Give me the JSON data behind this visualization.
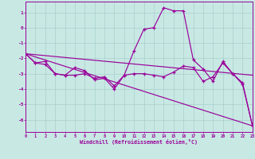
{
  "xlabel": "Windchill (Refroidissement éolien,°C)",
  "bg_color": "#c8e8e4",
  "grid_color": "#a8d0cc",
  "line_color": "#990099",
  "x_values": [
    0,
    1,
    2,
    3,
    4,
    5,
    6,
    7,
    8,
    9,
    10,
    11,
    12,
    13,
    14,
    15,
    16,
    17,
    18,
    19,
    20,
    21,
    22,
    23
  ],
  "line_zigzag": [
    -1.7,
    -2.3,
    -2.2,
    -3.0,
    -3.1,
    -2.6,
    -2.8,
    -3.4,
    -3.3,
    -4.0,
    -3.1,
    -1.5,
    -0.1,
    0.0,
    1.3,
    1.1,
    1.1,
    -2.1,
    -2.7,
    -3.5,
    -2.2,
    -3.0,
    -3.7,
    -6.4
  ],
  "line_flat": [
    -1.7,
    -2.3,
    -2.4,
    -3.0,
    -3.1,
    -3.1,
    -3.0,
    -3.3,
    -3.2,
    -3.8,
    -3.1,
    -3.0,
    -3.0,
    -3.1,
    -3.2,
    -2.9,
    -2.5,
    -2.6,
    -3.5,
    -3.2,
    -2.3,
    -3.0,
    -3.6,
    -6.4
  ],
  "trend1_x": [
    0,
    23
  ],
  "trend1_y": [
    -1.7,
    -3.1
  ],
  "trend2_x": [
    0,
    23
  ],
  "trend2_y": [
    -1.7,
    -6.4
  ],
  "ylim": [
    -6.8,
    1.7
  ],
  "xlim": [
    0,
    23
  ],
  "yticks": [
    -6,
    -5,
    -4,
    -3,
    -2,
    -1,
    0,
    1
  ],
  "xticks": [
    0,
    1,
    2,
    3,
    4,
    5,
    6,
    7,
    8,
    9,
    10,
    11,
    12,
    13,
    14,
    15,
    16,
    17,
    18,
    19,
    20,
    21,
    22,
    23
  ]
}
